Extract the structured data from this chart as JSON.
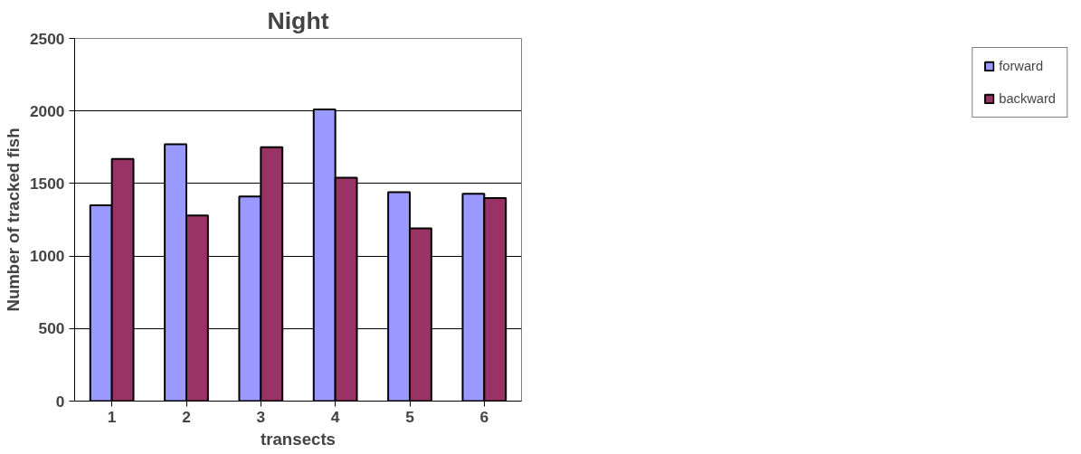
{
  "chart_data": {
    "type": "bar",
    "title": "Night",
    "xlabel": "transects",
    "ylabel": "Number of tracked fish",
    "categories": [
      "1",
      "2",
      "3",
      "4",
      "5",
      "6"
    ],
    "series": [
      {
        "name": "forward",
        "color": "#9999ff",
        "values": [
          1350,
          1770,
          1410,
          2010,
          1440,
          1430
        ]
      },
      {
        "name": "backward",
        "color": "#993366",
        "values": [
          1670,
          1280,
          1750,
          1540,
          1190,
          1400
        ]
      }
    ],
    "ylim": [
      0,
      2500
    ],
    "yticks": [
      0,
      500,
      1000,
      1500,
      2000,
      2500
    ],
    "grid": "y",
    "legend": "right"
  }
}
